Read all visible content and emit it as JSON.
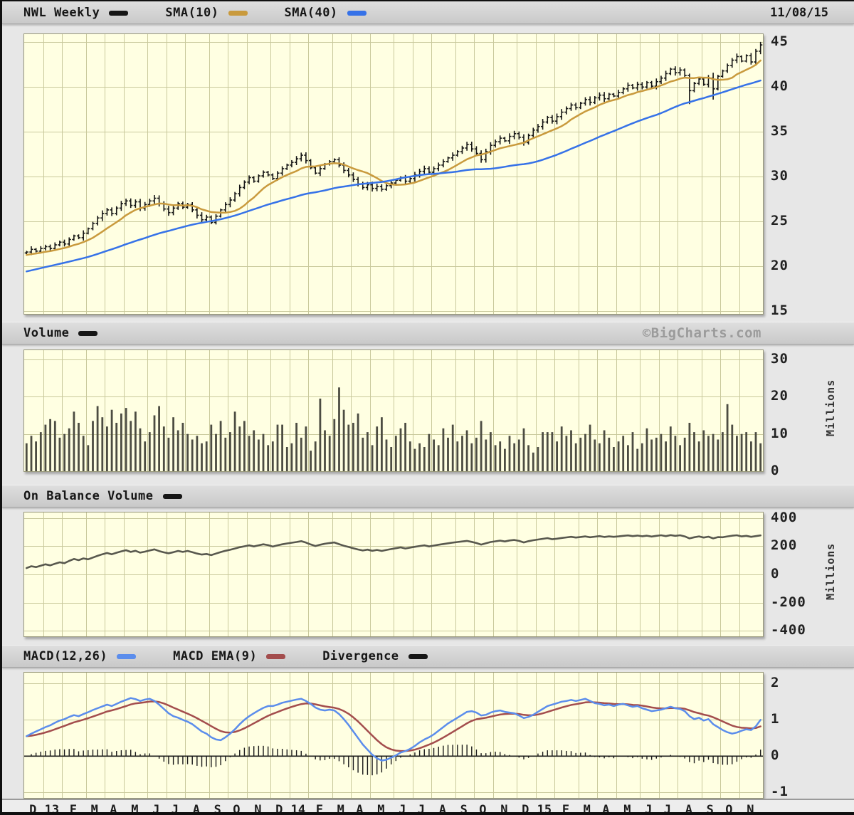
{
  "header": {
    "date": "11/08/15",
    "legend": [
      {
        "label": "NWL Weekly",
        "color": "#161616"
      },
      {
        "label": "SMA(10)",
        "color": "#c99a3d"
      },
      {
        "label": "SMA(40)",
        "color": "#3672e8"
      }
    ]
  },
  "panels": {
    "price": {
      "yticks": [
        45,
        40,
        35,
        30,
        25,
        20,
        15
      ]
    },
    "volume": {
      "title": "Volume",
      "swatch": "#161616",
      "watermark": "©BigCharts.com",
      "yticks": [
        30,
        20,
        10,
        0
      ],
      "unit": "Millions"
    },
    "obv": {
      "title": "On Balance Volume",
      "swatch": "#161616",
      "yticks": [
        400,
        200,
        0,
        -200,
        -400
      ],
      "unit": "Millions"
    },
    "macd": {
      "yticks": [
        2,
        1,
        0,
        -1
      ],
      "legend": [
        {
          "label": "MACD(12,26)",
          "color": "#5b8dec"
        },
        {
          "label": "MACD EMA(9)",
          "color": "#a34d4d"
        },
        {
          "label": "Divergence",
          "color": "#161616"
        }
      ]
    }
  },
  "xaxis": {
    "labels": [
      "D",
      "13",
      "F",
      "M",
      "A",
      "M",
      "J",
      "J",
      "A",
      "S",
      "O",
      "N",
      "D",
      "14",
      "F",
      "M",
      "A",
      "M",
      "J",
      "J",
      "A",
      "S",
      "O",
      "N",
      "D",
      "15",
      "F",
      "M",
      "A",
      "M",
      "J",
      "J",
      "A",
      "S",
      "O",
      "N"
    ],
    "month_weeks": [
      4,
      4,
      5,
      4,
      4,
      5,
      4,
      4,
      5,
      4,
      4,
      5,
      4,
      4,
      5,
      4,
      4,
      5,
      4,
      4,
      5,
      4,
      4,
      5,
      4,
      4,
      5,
      4,
      4,
      5,
      4,
      4,
      5,
      4,
      4,
      5
    ]
  },
  "colors": {
    "plot_bg": "#ffffe2",
    "grid": "#c9c99c",
    "price_bar": "#141414",
    "sma10": "#c99a3d",
    "sma40": "#3672e8",
    "volume_bar": "#4c4c42",
    "obv_line": "#58584e",
    "macd_line": "#5b8dec",
    "macd_signal": "#a34d4d",
    "macd_hist": "#1a1a1a",
    "zero_line": "#1a1a1a"
  },
  "chart_data": [
    {
      "id": "price",
      "type": "ohlc-bar",
      "title": "NWL Weekly",
      "x_range": [
        "Dec 2012",
        "Nov 2015"
      ],
      "freq": "weekly",
      "points": 156,
      "ylim": [
        15,
        45
      ],
      "yticks": [
        45,
        40,
        35,
        30,
        25,
        20,
        15
      ],
      "closes": [
        21.6,
        21.9,
        21.7,
        22.0,
        22.2,
        22.0,
        22.4,
        22.7,
        22.5,
        23.0,
        23.4,
        23.2,
        23.7,
        24.2,
        24.8,
        25.4,
        25.9,
        26.3,
        25.9,
        26.5,
        27.0,
        27.3,
        26.8,
        27.2,
        26.5,
        26.9,
        27.3,
        27.6,
        27.0,
        26.4,
        26.0,
        26.5,
        27.0,
        26.6,
        26.9,
        26.3,
        25.7,
        25.2,
        25.5,
        24.9,
        25.6,
        26.3,
        26.9,
        27.4,
        28.1,
        28.8,
        29.4,
        29.9,
        29.5,
        30.1,
        30.5,
        30.2,
        29.8,
        30.4,
        30.9,
        31.3,
        31.6,
        32.0,
        32.4,
        31.8,
        31.0,
        30.4,
        30.9,
        31.4,
        31.7,
        31.9,
        31.3,
        30.7,
        30.2,
        29.7,
        29.2,
        28.8,
        29.1,
        28.7,
        28.9,
        28.6,
        29.0,
        29.3,
        29.6,
        29.9,
        29.5,
        29.8,
        30.2,
        30.6,
        30.9,
        30.5,
        30.9,
        31.3,
        31.7,
        32.1,
        32.4,
        32.8,
        33.2,
        33.6,
        33.1,
        32.6,
        31.9,
        32.8,
        33.5,
        33.9,
        34.3,
        34.0,
        34.5,
        34.8,
        34.4,
        33.8,
        34.6,
        35.2,
        35.6,
        36.1,
        36.6,
        36.2,
        36.7,
        37.2,
        37.6,
        38.0,
        37.7,
        38.2,
        38.6,
        38.3,
        38.8,
        39.1,
        38.7,
        39.2,
        39.0,
        39.4,
        39.8,
        40.2,
        39.9,
        40.3,
        40.0,
        40.5,
        40.1,
        40.6,
        41.0,
        41.5,
        42.0,
        41.6,
        41.9,
        41.3,
        39.6,
        40.4,
        40.9,
        40.3,
        41.0,
        39.8,
        41.2,
        41.8,
        42.4,
        43.0,
        43.4,
        42.9,
        43.5,
        42.8,
        44.0,
        44.7
      ],
      "pre_closes": [
        16.8,
        16.9,
        17.0,
        17.1,
        17.3,
        17.4,
        17.5,
        17.7,
        17.8,
        18.0,
        18.1,
        18.2,
        18.4,
        18.5,
        18.6,
        18.8,
        18.9,
        19.0,
        19.2,
        19.3,
        19.4,
        19.6,
        19.7,
        19.8,
        20.0,
        20.1,
        20.2,
        20.4,
        20.5,
        20.6,
        20.8,
        20.9,
        21.0,
        21.1,
        21.2,
        21.3,
        21.3,
        21.4,
        21.4,
        21.5
      ],
      "wick_overrides": {
        "140": {
          "high": 41.5,
          "low": 38.1
        },
        "145": {
          "high": 41.6,
          "low": 38.6
        }
      },
      "overlays": [
        {
          "name": "SMA(10)",
          "derived": "sma",
          "window": 10
        },
        {
          "name": "SMA(40)",
          "derived": "sma",
          "window": 40
        }
      ]
    },
    {
      "id": "volume",
      "type": "bar",
      "title": "Volume",
      "ylabel": "Millions",
      "ylim": [
        0,
        30
      ],
      "yticks": [
        30,
        20,
        10,
        0
      ],
      "values": [
        7.5,
        9.5,
        8.0,
        10.5,
        12.5,
        14.0,
        13.5,
        9.0,
        10.0,
        11.5,
        16.0,
        13.0,
        9.5,
        7.0,
        13.5,
        17.5,
        14.5,
        12.0,
        16.5,
        13.0,
        15.5,
        17.0,
        13.5,
        16.0,
        11.5,
        8.0,
        10.5,
        15.0,
        17.5,
        12.0,
        9.0,
        14.5,
        11.0,
        13.0,
        10.0,
        8.5,
        9.5,
        7.5,
        8.0,
        12.5,
        10.0,
        13.5,
        9.0,
        10.5,
        16.0,
        12.0,
        13.5,
        9.5,
        11.0,
        8.5,
        10.0,
        7.0,
        8.0,
        12.5,
        12.5,
        6.5,
        7.5,
        13.0,
        9.0,
        12.0,
        5.5,
        8.0,
        19.5,
        11.0,
        9.5,
        14.0,
        22.5,
        16.5,
        12.5,
        13.0,
        15.5,
        9.0,
        10.5,
        7.0,
        12.0,
        14.5,
        8.5,
        6.5,
        9.5,
        11.5,
        13.0,
        8.0,
        6.0,
        7.5,
        6.5,
        10.0,
        8.5,
        7.0,
        11.5,
        9.0,
        12.5,
        8.0,
        9.5,
        11.0,
        7.5,
        9.0,
        13.5,
        8.5,
        10.5,
        7.0,
        8.0,
        6.0,
        9.5,
        7.5,
        8.5,
        11.5,
        7.0,
        5.0,
        6.5,
        10.5,
        10.5,
        10.5,
        8.0,
        12.0,
        9.5,
        11.0,
        7.5,
        9.0,
        10.0,
        12.5,
        8.5,
        7.5,
        11.0,
        9.0,
        6.5,
        8.0,
        9.5,
        7.0,
        10.5,
        6.0,
        7.5,
        11.5,
        8.5,
        9.0,
        10.0,
        8.0,
        12.0,
        9.5,
        7.0,
        9.0,
        13.0,
        10.5,
        8.0,
        11.0,
        9.5,
        10.0,
        8.5,
        10.5,
        18.0,
        12.5,
        9.5,
        10.0,
        10.5,
        8.0,
        10.5,
        7.5
      ]
    },
    {
      "id": "obv",
      "type": "line",
      "title": "On Balance Volume",
      "ylabel": "Millions",
      "ylim": [
        -400,
        400
      ],
      "yticks": [
        400,
        200,
        0,
        -200,
        -400
      ],
      "values": [
        45,
        58,
        52,
        62,
        72,
        64,
        76,
        86,
        80,
        96,
        110,
        101,
        114,
        107,
        120,
        132,
        143,
        152,
        143,
        154,
        164,
        172,
        160,
        168,
        155,
        162,
        170,
        178,
        166,
        157,
        150,
        158,
        167,
        160,
        167,
        158,
        148,
        141,
        145,
        137,
        148,
        159,
        168,
        175,
        184,
        193,
        200,
        207,
        199,
        207,
        214,
        208,
        198,
        207,
        214,
        220,
        225,
        230,
        236,
        226,
        213,
        202,
        211,
        218,
        223,
        227,
        215,
        204,
        195,
        186,
        177,
        170,
        176,
        168,
        174,
        167,
        174,
        180,
        186,
        192,
        184,
        190,
        196,
        202,
        207,
        199,
        205,
        211,
        216,
        221,
        226,
        230,
        234,
        238,
        231,
        223,
        212,
        221,
        230,
        235,
        240,
        234,
        241,
        245,
        238,
        227,
        236,
        243,
        248,
        253,
        258,
        250,
        254,
        259,
        263,
        267,
        262,
        266,
        270,
        264,
        268,
        272,
        266,
        270,
        267,
        270,
        274,
        277,
        272,
        276,
        271,
        275,
        269,
        274,
        278,
        272,
        279,
        274,
        278,
        270,
        256,
        264,
        270,
        262,
        268,
        256,
        265,
        264,
        270,
        275,
        278,
        270,
        274,
        267,
        272,
        277
      ]
    },
    {
      "id": "macd",
      "type": "line+histogram",
      "title": "MACD(12,26)",
      "ylim": [
        -1,
        2
      ],
      "yticks": [
        2,
        1,
        0,
        -1
      ],
      "values": [
        0.55,
        0.62,
        0.68,
        0.74,
        0.8,
        0.85,
        0.92,
        0.98,
        1.02,
        1.08,
        1.13,
        1.1,
        1.16,
        1.21,
        1.27,
        1.32,
        1.37,
        1.42,
        1.38,
        1.44,
        1.5,
        1.55,
        1.6,
        1.57,
        1.52,
        1.56,
        1.58,
        1.52,
        1.42,
        1.3,
        1.18,
        1.1,
        1.06,
        1.0,
        0.95,
        0.88,
        0.78,
        0.68,
        0.62,
        0.52,
        0.46,
        0.44,
        0.52,
        0.62,
        0.74,
        0.88,
        1.0,
        1.1,
        1.18,
        1.26,
        1.33,
        1.38,
        1.38,
        1.42,
        1.47,
        1.5,
        1.53,
        1.56,
        1.58,
        1.52,
        1.44,
        1.34,
        1.28,
        1.26,
        1.28,
        1.26,
        1.16,
        1.02,
        0.86,
        0.68,
        0.5,
        0.32,
        0.18,
        0.04,
        -0.06,
        -0.12,
        -0.1,
        -0.04,
        0.02,
        0.1,
        0.14,
        0.2,
        0.28,
        0.38,
        0.46,
        0.52,
        0.6,
        0.7,
        0.8,
        0.9,
        0.98,
        1.06,
        1.14,
        1.22,
        1.24,
        1.2,
        1.12,
        1.14,
        1.2,
        1.24,
        1.26,
        1.22,
        1.2,
        1.18,
        1.12,
        1.05,
        1.08,
        1.14,
        1.22,
        1.3,
        1.38,
        1.42,
        1.46,
        1.5,
        1.52,
        1.55,
        1.52,
        1.55,
        1.58,
        1.52,
        1.46,
        1.44,
        1.4,
        1.42,
        1.38,
        1.42,
        1.44,
        1.4,
        1.36,
        1.38,
        1.32,
        1.28,
        1.24,
        1.26,
        1.28,
        1.32,
        1.36,
        1.32,
        1.3,
        1.24,
        1.1,
        1.02,
        1.06,
        0.98,
        1.02,
        0.88,
        0.8,
        0.72,
        0.66,
        0.62,
        0.65,
        0.7,
        0.74,
        0.72,
        0.82,
        1.0
      ],
      "signal": {
        "name": "MACD EMA(9)",
        "derived": "ema",
        "window": 9
      },
      "histogram": {
        "name": "Divergence",
        "derived": "values - signal"
      }
    }
  ]
}
